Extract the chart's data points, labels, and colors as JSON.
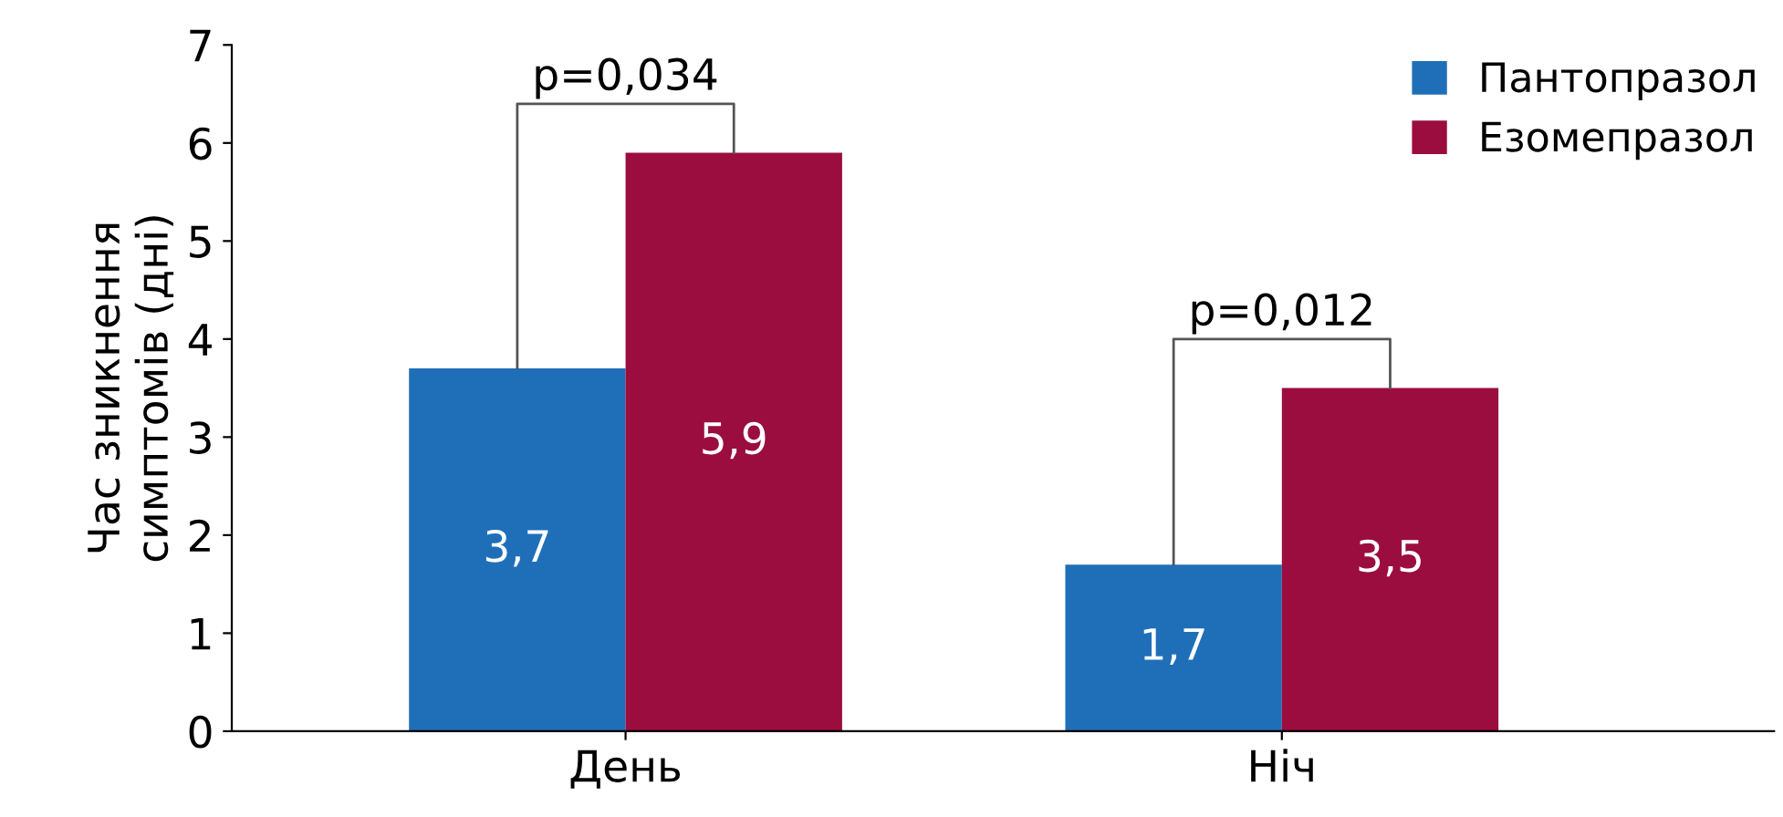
{
  "chart_data": {
    "type": "bar",
    "ylabel": "Час зникнення\nсимптомів (дні)",
    "categories": [
      "День",
      "Ніч"
    ],
    "series": [
      {
        "name": "Пантопразол",
        "color": "#1f6fb8",
        "values": [
          3.7,
          1.7
        ],
        "value_labels": [
          "3,7",
          "1,7"
        ]
      },
      {
        "name": "Езомепразол",
        "color": "#9b0d3f",
        "values": [
          5.9,
          3.5
        ],
        "value_labels": [
          "5,9",
          "3,5"
        ]
      }
    ],
    "ylim": [
      0,
      7
    ],
    "yticks": [
      0,
      1,
      2,
      3,
      4,
      5,
      6,
      7
    ],
    "grid": false,
    "legend": "top right",
    "annotations": [
      "p=0,034",
      "p=0,012"
    ]
  }
}
